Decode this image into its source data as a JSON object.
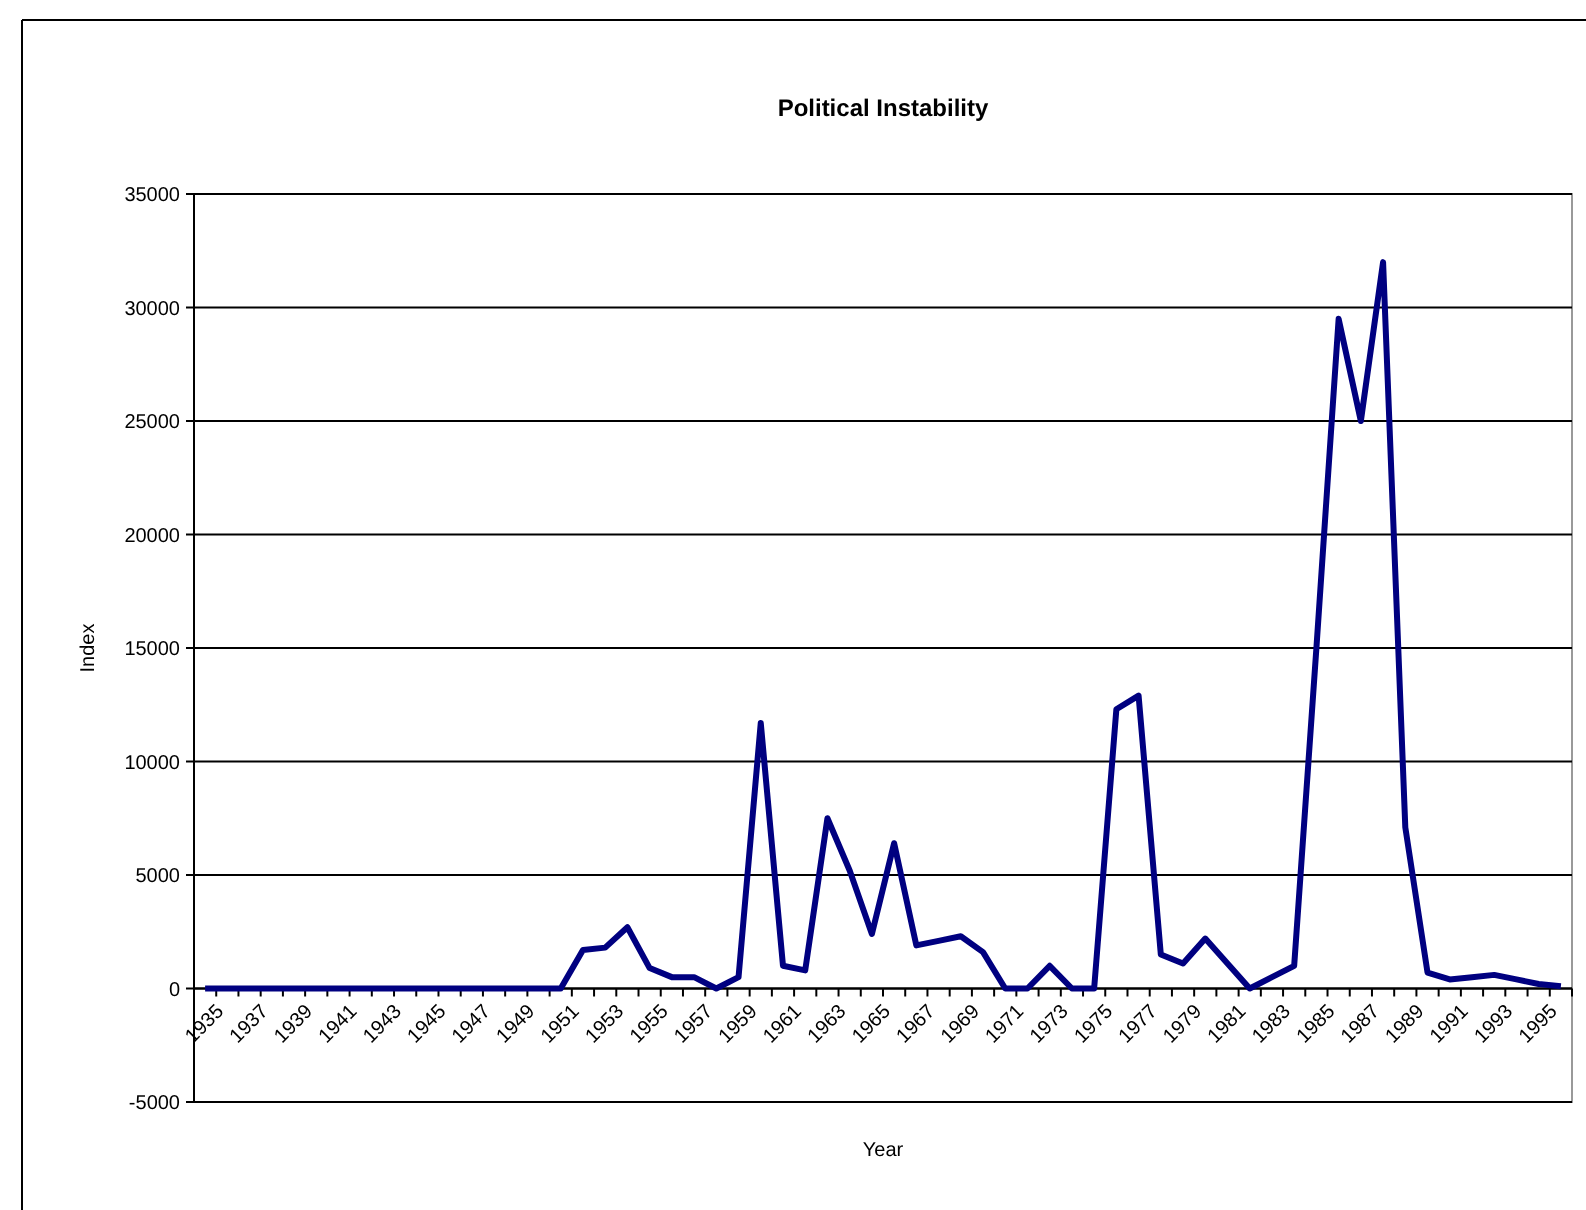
{
  "chart_data": {
    "type": "line",
    "title": "Political Instability",
    "xlabel": "Year",
    "ylabel": "Index",
    "categories": [
      "1935",
      null,
      "1937",
      null,
      "1939",
      null,
      "1941",
      null,
      "1943",
      null,
      "1945",
      null,
      "1947",
      null,
      "1949",
      null,
      "1951",
      null,
      "1953",
      null,
      "1955",
      null,
      "1957",
      null,
      "1959",
      null,
      "1961",
      null,
      "1963",
      null,
      "1965",
      null,
      "1967",
      null,
      "1969",
      null,
      "1971",
      null,
      "1973",
      null,
      "1975",
      null,
      "1977",
      null,
      "1979",
      null,
      "1981",
      null,
      "1983",
      null,
      "1985",
      null,
      "1987",
      null,
      "1989",
      null,
      "1991",
      null,
      "1993",
      null,
      "1995",
      null
    ],
    "series": [
      {
        "color": "#000080",
        "values": [
          0,
          0,
          0,
          0,
          0,
          0,
          0,
          0,
          0,
          0,
          0,
          0,
          0,
          0,
          0,
          0,
          0,
          1700,
          1800,
          2700,
          900,
          500,
          500,
          0,
          500,
          11700,
          1000,
          800,
          7500,
          5200,
          2400,
          6400,
          1900,
          2100,
          2300,
          1600,
          0,
          0,
          1000,
          0,
          0,
          12300,
          12900,
          1500,
          1100,
          2200,
          1100,
          0,
          500,
          1000,
          15000,
          29500,
          25000,
          32000,
          7100,
          700,
          400,
          500,
          600,
          400,
          200,
          100
        ]
      }
    ],
    "ylim": [
      -5000,
      35000
    ],
    "yticks": [
      -5000,
      0,
      5000,
      10000,
      15000,
      20000,
      25000,
      30000,
      35000
    ],
    "grid": "y",
    "marker": "none",
    "line_style": "solid"
  }
}
